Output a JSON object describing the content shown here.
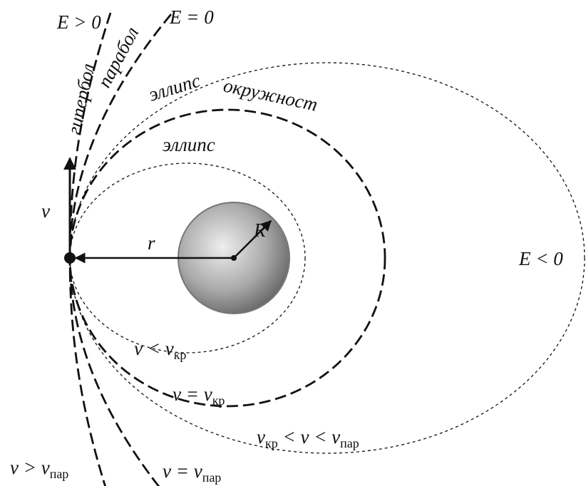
{
  "labels": {
    "e_pos": "E > 0",
    "e_zero": "E = 0",
    "e_neg": "E < 0",
    "hyperbola": "гипербол",
    "parabola": "парабол",
    "ellipse_outer": "эллипс",
    "circle": "окружност",
    "ellipse_inner": "эллипс",
    "velocity": "v⃗",
    "radius_orbit": "r",
    "radius_earth": "R",
    "v_lt": {
      "main": "v < v",
      "sub": "кр"
    },
    "v_eq": {
      "main": "v = v",
      "sub": "кр"
    },
    "v_between": {
      "main1": "v",
      "sub1": "кр",
      "main2": " < v < v",
      "sub2": "пар"
    },
    "v_gt": {
      "main": "v > v",
      "sub": "пар"
    },
    "v_par": {
      "main": "v = v",
      "sub": "пар"
    }
  }
}
